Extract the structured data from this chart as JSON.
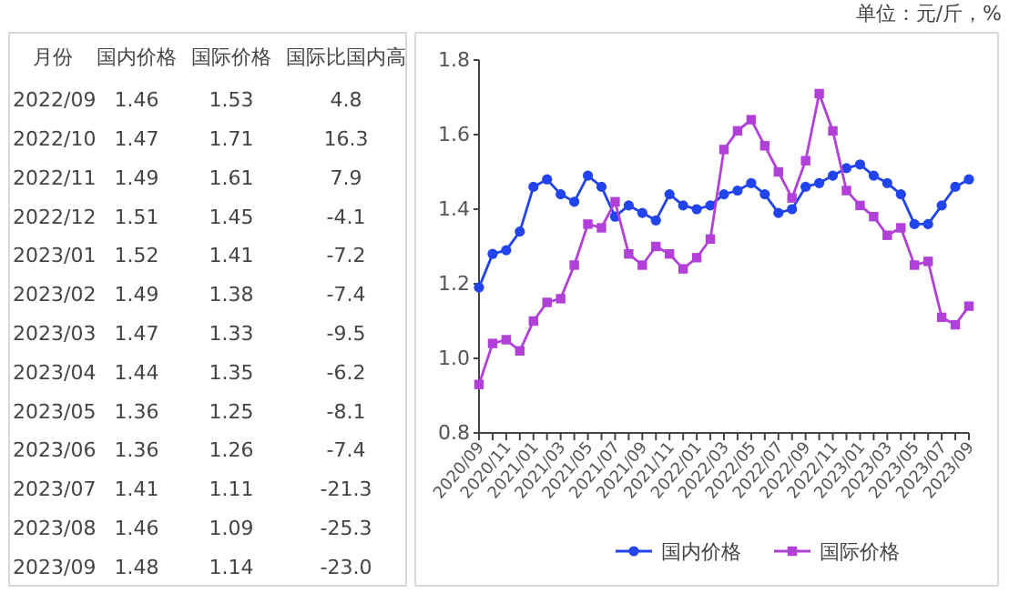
{
  "chart_data": [
    {
      "type": "other",
      "categories": [
        "月份",
        "国内价格",
        "国际价格",
        "国际比国内高"
      ],
      "annotations": [
        "2022/09",
        "1.46",
        "1.53",
        "4.8",
        "2022/10",
        "1.47",
        "1.71",
        "16.3",
        "2022/11",
        "1.49",
        "1.61",
        "7.9",
        "2022/12",
        "1.51",
        "1.45",
        "-4.1",
        "2023/01",
        "1.52",
        "1.41",
        "-7.2",
        "2023/02",
        "1.49",
        "1.38",
        "-7.4",
        "2023/03",
        "1.47",
        "1.33",
        "-9.5",
        "2023/04",
        "1.44",
        "1.35",
        "-6.2",
        "2023/05",
        "1.36",
        "1.25",
        "-8.1",
        "2023/06",
        "1.36",
        "1.26",
        "-7.4",
        "2023/07",
        "1.41",
        "1.11",
        "-21.3",
        "2023/08",
        "1.46",
        "1.09",
        "-25.3",
        "2023/09",
        "1.48",
        "1.14",
        "-23.0"
      ]
    },
    {
      "type": "line",
      "annotations": [
        "单位：元/斤，%"
      ],
      "categories": [
        "2020/09",
        null,
        "2020/11",
        null,
        "2021/01",
        null,
        "2021/03",
        null,
        "2021/05",
        null,
        "2021/07",
        null,
        "2021/09",
        null,
        "2021/11",
        null,
        "2022/01",
        null,
        "2022/03",
        null,
        "2022/05",
        null,
        "2022/07",
        null,
        "2022/09",
        null,
        "2022/11",
        null,
        "2023/01",
        null,
        "2023/03",
        null,
        "2023/05",
        null,
        "2023/07",
        null,
        "2023/09"
      ],
      "series": [
        {
          "name": "国内价格",
          "color": "#2244ee",
          "marker": "circle",
          "values": [
            1.19,
            1.28,
            1.29,
            1.34,
            1.46,
            1.48,
            1.44,
            1.42,
            1.49,
            1.46,
            1.38,
            1.41,
            1.39,
            1.37,
            1.44,
            1.41,
            1.4,
            1.41,
            1.44,
            1.45,
            1.47,
            1.44,
            1.39,
            1.4,
            1.46,
            1.47,
            1.49,
            1.51,
            1.52,
            1.49,
            1.47,
            1.44,
            1.36,
            1.36,
            1.41,
            1.46,
            1.48
          ]
        },
        {
          "name": "国际价格",
          "color": "#b040d8",
          "marker": "square",
          "values": [
            0.93,
            1.04,
            1.05,
            1.02,
            1.1,
            1.15,
            1.16,
            1.25,
            1.36,
            1.35,
            1.42,
            1.28,
            1.25,
            1.3,
            1.28,
            1.24,
            1.27,
            1.32,
            1.56,
            1.61,
            1.64,
            1.57,
            1.5,
            1.43,
            1.53,
            1.71,
            1.61,
            1.45,
            1.41,
            1.38,
            1.33,
            1.35,
            1.25,
            1.26,
            1.11,
            1.09,
            1.14
          ]
        }
      ],
      "ylim": [
        0.8,
        1.8
      ],
      "yticks": [
        0.8,
        {
          "value": 1.0,
          "label": "1.0"
        },
        1.2,
        1.4,
        1.6,
        1.8
      ],
      "legend": "bottom",
      "grid": false
    }
  ]
}
